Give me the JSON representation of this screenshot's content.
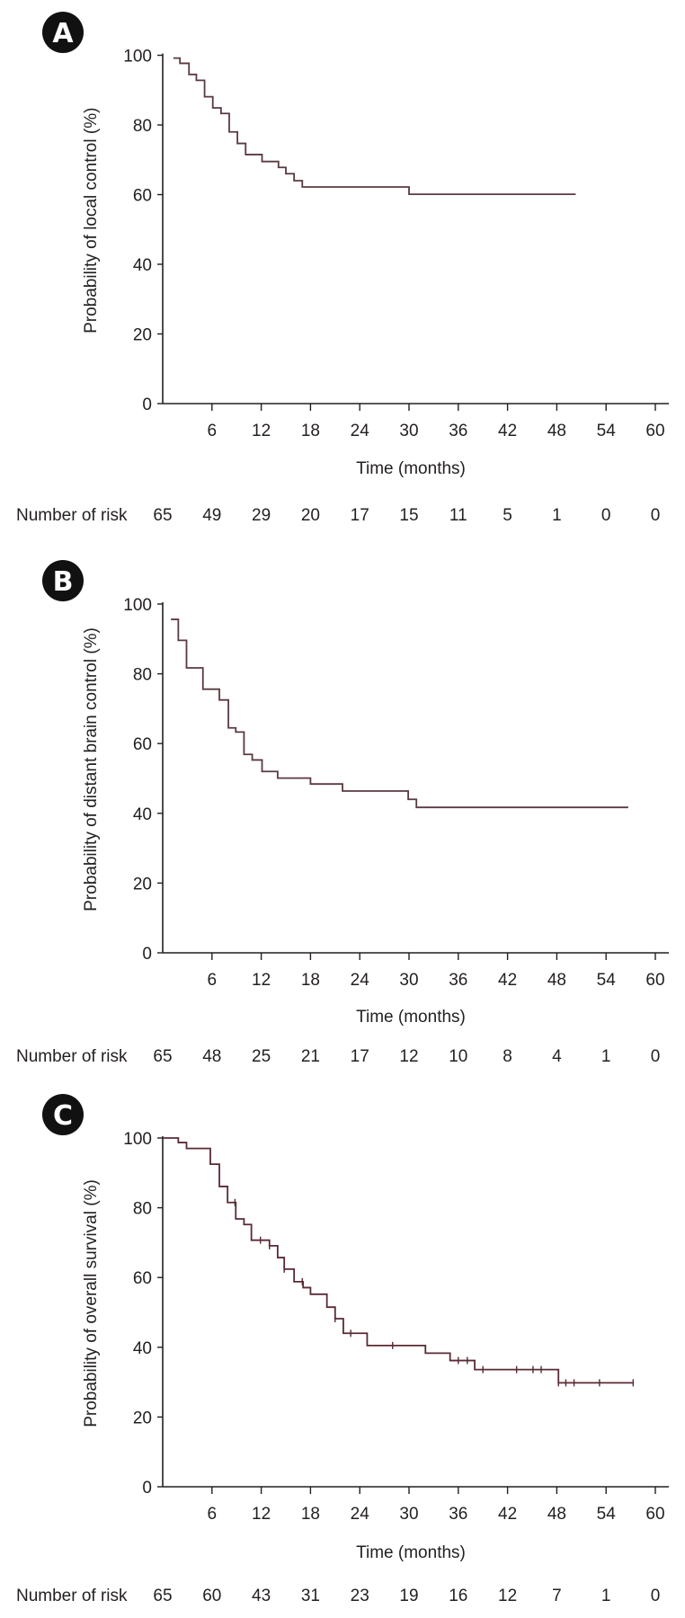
{
  "chart_data": [
    {
      "type": "line",
      "panel": "A",
      "xlabel": "Time (months)",
      "ylabel": "Probability of local control (%)",
      "xlim": [
        0,
        60
      ],
      "ylim": [
        0,
        100
      ],
      "xticks": [
        "6",
        "12",
        "18",
        "24",
        "30",
        "36",
        "42",
        "48",
        "54",
        "60"
      ],
      "yticks": [
        "0",
        "20",
        "40",
        "60",
        "80",
        "100"
      ],
      "risk_label": "Number of risk",
      "risk": [
        "65",
        "49",
        "29",
        "20",
        "17",
        "15",
        "11",
        "5",
        "1",
        "0",
        "0"
      ],
      "color": "#5a3a40",
      "start": [
        1.3,
        99.2
      ],
      "steps": [
        [
          2.1,
          97.7
        ],
        [
          3.2,
          94.5
        ],
        [
          4.1,
          92.8
        ],
        [
          5.1,
          88.1
        ],
        [
          6.1,
          84.9
        ],
        [
          7.1,
          83.3
        ],
        [
          8.1,
          78.0
        ],
        [
          9.1,
          74.7
        ],
        [
          10.1,
          71.5
        ],
        [
          12.1,
          69.5
        ],
        [
          14.1,
          67.8
        ],
        [
          15.0,
          66.0
        ],
        [
          16.0,
          64.0
        ],
        [
          17.0,
          62.2
        ],
        [
          30.0,
          60.1
        ]
      ],
      "end": 50.3,
      "censored": []
    },
    {
      "type": "line",
      "panel": "B",
      "xlabel": "Time (months)",
      "ylabel": "Probability of distant brain control (%)",
      "xlim": [
        0,
        60
      ],
      "ylim": [
        0,
        100
      ],
      "xticks": [
        "6",
        "12",
        "18",
        "24",
        "30",
        "36",
        "42",
        "48",
        "54",
        "60"
      ],
      "yticks": [
        "0",
        "20",
        "40",
        "60",
        "80",
        "100"
      ],
      "risk_label": "Number of risk",
      "risk": [
        "65",
        "48",
        "25",
        "21",
        "17",
        "12",
        "10",
        "8",
        "4",
        "1",
        "0"
      ],
      "color": "#5a3a40",
      "start": [
        1.0,
        95.6
      ],
      "steps": [
        [
          1.9,
          89.6
        ],
        [
          2.9,
          81.7
        ],
        [
          4.9,
          75.6
        ],
        [
          6.9,
          72.5
        ],
        [
          8.0,
          64.5
        ],
        [
          8.9,
          63.3
        ],
        [
          9.9,
          56.9
        ],
        [
          10.9,
          55.3
        ],
        [
          12.1,
          52.0
        ],
        [
          14.0,
          50.1
        ],
        [
          18.0,
          48.4
        ],
        [
          21.9,
          46.4
        ],
        [
          29.9,
          44.0
        ],
        [
          30.9,
          41.7
        ]
      ],
      "end": 56.7,
      "censored": []
    },
    {
      "type": "line",
      "panel": "C",
      "xlabel": "Time (months)",
      "ylabel": "Probability of overall survival (%)",
      "xlim": [
        0,
        60
      ],
      "ylim": [
        0,
        100
      ],
      "xticks": [
        "6",
        "12",
        "18",
        "24",
        "30",
        "36",
        "42",
        "48",
        "54",
        "60"
      ],
      "yticks": [
        "0",
        "20",
        "40",
        "60",
        "80",
        "100"
      ],
      "risk_label": "Number of risk",
      "risk": [
        "65",
        "60",
        "43",
        "31",
        "23",
        "19",
        "16",
        "12",
        "7",
        "1",
        "0"
      ],
      "color": "#5a2a35",
      "start": [
        0,
        100
      ],
      "steps": [
        [
          1.9,
          98.7
        ],
        [
          2.9,
          97.0
        ],
        [
          5.8,
          92.5
        ],
        [
          6.9,
          86.1
        ],
        [
          7.9,
          81.5
        ],
        [
          8.9,
          76.8
        ],
        [
          9.9,
          75.2
        ],
        [
          10.8,
          70.7
        ],
        [
          13.0,
          69.1
        ],
        [
          14.0,
          65.7
        ],
        [
          14.8,
          62.4
        ],
        [
          16.0,
          58.8
        ],
        [
          17.1,
          57.1
        ],
        [
          18.0,
          55.2
        ],
        [
          20.0,
          51.5
        ],
        [
          21.0,
          48.2
        ],
        [
          22.0,
          44.0
        ],
        [
          24.9,
          40.5
        ],
        [
          32.0,
          38.3
        ],
        [
          35.0,
          36.2
        ],
        [
          38.0,
          33.6
        ],
        [
          48.2,
          29.8
        ]
      ],
      "end": 57.3,
      "censored": [
        8.8,
        11.9,
        13.0,
        14.8,
        17.0,
        21.0,
        22.9,
        28.0,
        36.0,
        37.1,
        39.0,
        43.1,
        45.1,
        46.1,
        48.2,
        49.1,
        50.1,
        53.2,
        57.3
      ]
    }
  ]
}
